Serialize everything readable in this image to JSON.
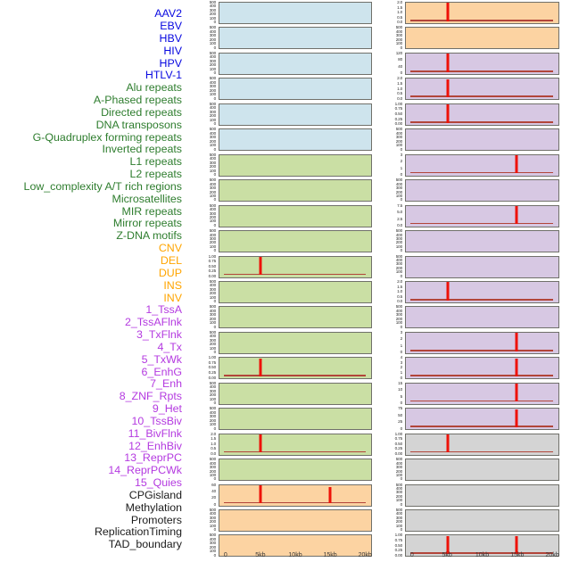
{
  "chart_data": {
    "type": "line",
    "description": "Faceted profile tracks around a genomic window; red vertical spikes mark enrichment peaks over a near-zero baseline",
    "x_axis": {
      "tick_labels": [
        "0",
        "5kb",
        "10kb",
        "15kb",
        "20kb"
      ],
      "tick_kb": [
        0,
        5,
        10,
        15,
        20
      ],
      "range_kb": [
        0,
        20
      ]
    },
    "palette": {
      "virus": {
        "label": "#0909e0",
        "panel": "#cee4ed"
      },
      "repeat": {
        "label": "#2e7d2e",
        "panel": "#cadfa4"
      },
      "sv": {
        "label": "#ffa500",
        "panel": "#fcd3a2"
      },
      "chromatin": {
        "label": "#b43ae0",
        "panel": "#d7c8e3"
      },
      "annotation": {
        "label": "#1c1c1c",
        "panel": "#d4d4d4"
      }
    },
    "spike_color": "#ee1208",
    "baseline_color": "#b2453a",
    "facets": [
      {
        "label": "AAV2",
        "group": "virus",
        "column": "left",
        "row": 0,
        "yticks": [
          "500",
          "400",
          "300",
          "200",
          "100",
          "0"
        ],
        "spikes": []
      },
      {
        "label": "EBV",
        "group": "virus",
        "column": "left",
        "row": 1,
        "yticks": [
          "500",
          "400",
          "300",
          "200",
          "100",
          "0"
        ],
        "spikes": []
      },
      {
        "label": "HBV",
        "group": "virus",
        "column": "left",
        "row": 2,
        "yticks": [
          "500",
          "400",
          "300",
          "200",
          "100",
          "0"
        ],
        "spikes": []
      },
      {
        "label": "HIV",
        "group": "virus",
        "column": "left",
        "row": 3,
        "yticks": [
          "500",
          "400",
          "300",
          "200",
          "100",
          "0"
        ],
        "spikes": []
      },
      {
        "label": "HPV",
        "group": "virus",
        "column": "left",
        "row": 4,
        "yticks": [
          "500",
          "400",
          "300",
          "200",
          "100",
          "0"
        ],
        "spikes": []
      },
      {
        "label": "HTLV-1",
        "group": "virus",
        "column": "left",
        "row": 5,
        "yticks": [
          "500",
          "400",
          "300",
          "200",
          "100",
          "0"
        ],
        "spikes": []
      },
      {
        "label": "Alu repeats",
        "group": "repeat",
        "column": "left",
        "row": 6,
        "yticks": [
          "500",
          "400",
          "300",
          "200",
          "100",
          "0"
        ],
        "spikes": []
      },
      {
        "label": "A-Phased repeats",
        "group": "repeat",
        "column": "left",
        "row": 7,
        "yticks": [
          "500",
          "400",
          "300",
          "200",
          "100",
          "0"
        ],
        "spikes": []
      },
      {
        "label": "Directed repeats",
        "group": "repeat",
        "column": "left",
        "row": 8,
        "yticks": [
          "500",
          "400",
          "300",
          "200",
          "100",
          "0"
        ],
        "spikes": []
      },
      {
        "label": "DNA transposons",
        "group": "repeat",
        "column": "left",
        "row": 9,
        "yticks": [
          "500",
          "400",
          "300",
          "200",
          "100",
          "0"
        ],
        "spikes": []
      },
      {
        "label": "G-Quadruplex forming repeats",
        "group": "repeat",
        "column": "left",
        "row": 10,
        "yticks": [
          "1.00",
          "0.75",
          "0.50",
          "0.25",
          "0.00"
        ],
        "spikes": [
          {
            "kb": 5,
            "h": 1.0
          }
        ]
      },
      {
        "label": "Inverted repeats",
        "group": "repeat",
        "column": "left",
        "row": 11,
        "yticks": [
          "500",
          "400",
          "300",
          "200",
          "100",
          "0"
        ],
        "spikes": []
      },
      {
        "label": "L1 repeats",
        "group": "repeat",
        "column": "left",
        "row": 12,
        "yticks": [
          "500",
          "400",
          "300",
          "200",
          "100",
          "0"
        ],
        "spikes": []
      },
      {
        "label": "L2 repeats",
        "group": "repeat",
        "column": "left",
        "row": 13,
        "yticks": [
          "500",
          "400",
          "300",
          "200",
          "100",
          "0"
        ],
        "spikes": []
      },
      {
        "label": "Low_complexity A/T rich regions",
        "group": "repeat",
        "column": "left",
        "row": 14,
        "yticks": [
          "1.00",
          "0.75",
          "0.50",
          "0.25",
          "0.00"
        ],
        "spikes": [
          {
            "kb": 5,
            "h": 1.0
          }
        ]
      },
      {
        "label": "Microsatellites",
        "group": "repeat",
        "column": "left",
        "row": 15,
        "yticks": [
          "500",
          "400",
          "300",
          "200",
          "100",
          "0"
        ],
        "spikes": []
      },
      {
        "label": "MIR repeats",
        "group": "repeat",
        "column": "left",
        "row": 16,
        "yticks": [
          "500",
          "400",
          "300",
          "200",
          "100",
          "0"
        ],
        "spikes": []
      },
      {
        "label": "Mirror repeats",
        "group": "repeat",
        "column": "left",
        "row": 17,
        "yticks": [
          "2.0",
          "1.5",
          "1.0",
          "0.5",
          "0.0"
        ],
        "spikes": [
          {
            "kb": 5,
            "h": 1.0
          }
        ]
      },
      {
        "label": "Z-DNA motifs",
        "group": "repeat",
        "column": "left",
        "row": 18,
        "yticks": [
          "500",
          "400",
          "300",
          "200",
          "100",
          "0"
        ],
        "spikes": []
      },
      {
        "label": "CNV",
        "group": "sv",
        "column": "left",
        "row": 19,
        "yticks": [
          "60",
          "40",
          "20",
          "0"
        ],
        "spikes": [
          {
            "kb": 5,
            "h": 1.0
          },
          {
            "kb": 15,
            "h": 0.9
          }
        ]
      },
      {
        "label": "DEL",
        "group": "sv",
        "column": "left",
        "row": 20,
        "yticks": [
          "500",
          "400",
          "300",
          "200",
          "100",
          "0"
        ],
        "spikes": []
      },
      {
        "label": "DUP",
        "group": "sv",
        "column": "left",
        "row": 21,
        "yticks": [
          "500",
          "400",
          "300",
          "200",
          "100",
          "0"
        ],
        "spikes": []
      },
      {
        "label": "INS",
        "group": "sv",
        "column": "right",
        "row": 0,
        "yticks": [
          "2.0",
          "1.5",
          "1.0",
          "0.5",
          "0.0"
        ],
        "spikes": [
          {
            "kb": 5,
            "h": 1.0
          }
        ]
      },
      {
        "label": "INV",
        "group": "sv",
        "column": "right",
        "row": 1,
        "yticks": [
          "500",
          "400",
          "300",
          "200",
          "100",
          "0"
        ],
        "spikes": []
      },
      {
        "label": "1_TssA",
        "group": "chromatin",
        "column": "right",
        "row": 2,
        "yticks": [
          "120",
          "80",
          "40",
          "0"
        ],
        "spikes": [
          {
            "kb": 5,
            "h": 1.0
          }
        ]
      },
      {
        "label": "2_TssAFlnk",
        "group": "chromatin",
        "column": "right",
        "row": 3,
        "yticks": [
          "2.0",
          "1.5",
          "1.0",
          "0.5",
          "0.0"
        ],
        "spikes": [
          {
            "kb": 5,
            "h": 1.0
          }
        ]
      },
      {
        "label": "3_TxFlnk",
        "group": "chromatin",
        "column": "right",
        "row": 4,
        "yticks": [
          "1.00",
          "0.75",
          "0.50",
          "0.25",
          "0.00"
        ],
        "spikes": [
          {
            "kb": 5,
            "h": 1.0
          }
        ]
      },
      {
        "label": "4_Tx",
        "group": "chromatin",
        "column": "right",
        "row": 5,
        "yticks": [
          "500",
          "400",
          "300",
          "200",
          "100",
          "0"
        ],
        "spikes": []
      },
      {
        "label": "5_TxWk",
        "group": "chromatin",
        "column": "right",
        "row": 6,
        "yticks": [
          "3",
          "2",
          "1",
          "0"
        ],
        "spikes": [
          {
            "kb": 15,
            "h": 1.0
          }
        ]
      },
      {
        "label": "6_EnhG",
        "group": "chromatin",
        "column": "right",
        "row": 7,
        "yticks": [
          "500",
          "400",
          "300",
          "200",
          "100",
          "0"
        ],
        "spikes": []
      },
      {
        "label": "7_Enh",
        "group": "chromatin",
        "column": "right",
        "row": 8,
        "yticks": [
          "7.5",
          "5.0",
          "2.5",
          "0.0"
        ],
        "spikes": [
          {
            "kb": 15,
            "h": 1.0
          }
        ]
      },
      {
        "label": "8_ZNF_Rpts",
        "group": "chromatin",
        "column": "right",
        "row": 9,
        "yticks": [
          "500",
          "400",
          "300",
          "200",
          "100",
          "0"
        ],
        "spikes": []
      },
      {
        "label": "9_Het",
        "group": "chromatin",
        "column": "right",
        "row": 10,
        "yticks": [
          "500",
          "400",
          "300",
          "200",
          "100",
          "0"
        ],
        "spikes": []
      },
      {
        "label": "10_TssBiv",
        "group": "chromatin",
        "column": "right",
        "row": 11,
        "yticks": [
          "2.0",
          "1.5",
          "1.0",
          "0.5",
          "0.0"
        ],
        "spikes": [
          {
            "kb": 5,
            "h": 1.0
          }
        ]
      },
      {
        "label": "11_BivFlnk",
        "group": "chromatin",
        "column": "right",
        "row": 12,
        "yticks": [
          "500",
          "400",
          "300",
          "200",
          "100",
          "0"
        ],
        "spikes": []
      },
      {
        "label": "12_EnhBiv",
        "group": "chromatin",
        "column": "right",
        "row": 13,
        "yticks": [
          "3",
          "2",
          "1",
          "0"
        ],
        "spikes": [
          {
            "kb": 15,
            "h": 1.0
          }
        ]
      },
      {
        "label": "13_ReprPC",
        "group": "chromatin",
        "column": "right",
        "row": 14,
        "yticks": [
          "4",
          "3",
          "2",
          "1",
          "0"
        ],
        "spikes": [
          {
            "kb": 15,
            "h": 1.0
          }
        ]
      },
      {
        "label": "14_ReprPCWk",
        "group": "chromatin",
        "column": "right",
        "row": 15,
        "yticks": [
          "15",
          "10",
          "5",
          "0"
        ],
        "spikes": [
          {
            "kb": 15,
            "h": 1.0
          }
        ]
      },
      {
        "label": "15_Quies",
        "group": "chromatin",
        "column": "right",
        "row": 16,
        "yticks": [
          "75",
          "50",
          "25",
          "0"
        ],
        "spikes": [
          {
            "kb": 15,
            "h": 1.0
          }
        ]
      },
      {
        "label": "CPGisland",
        "group": "annotation",
        "column": "right",
        "row": 17,
        "yticks": [
          "1.00",
          "0.75",
          "0.50",
          "0.25",
          "0.00"
        ],
        "spikes": [
          {
            "kb": 5,
            "h": 1.0
          }
        ]
      },
      {
        "label": "Methylation",
        "group": "annotation",
        "column": "right",
        "row": 18,
        "yticks": [
          "500",
          "400",
          "300",
          "200",
          "100",
          "0"
        ],
        "spikes": []
      },
      {
        "label": "Promoters",
        "group": "annotation",
        "column": "right",
        "row": 19,
        "yticks": [
          "500",
          "400",
          "300",
          "200",
          "100",
          "0"
        ],
        "spikes": []
      },
      {
        "label": "ReplicationTiming",
        "group": "annotation",
        "column": "right",
        "row": 20,
        "yticks": [
          "500",
          "400",
          "300",
          "200",
          "100",
          "0"
        ],
        "spikes": []
      },
      {
        "label": "TAD_boundary",
        "group": "annotation",
        "column": "right",
        "row": 21,
        "yticks": [
          "1.00",
          "0.75",
          "0.50",
          "0.25",
          "0.00"
        ],
        "spikes": [
          {
            "kb": 5,
            "h": 1.0
          },
          {
            "kb": 15,
            "h": 1.0
          }
        ]
      }
    ]
  }
}
